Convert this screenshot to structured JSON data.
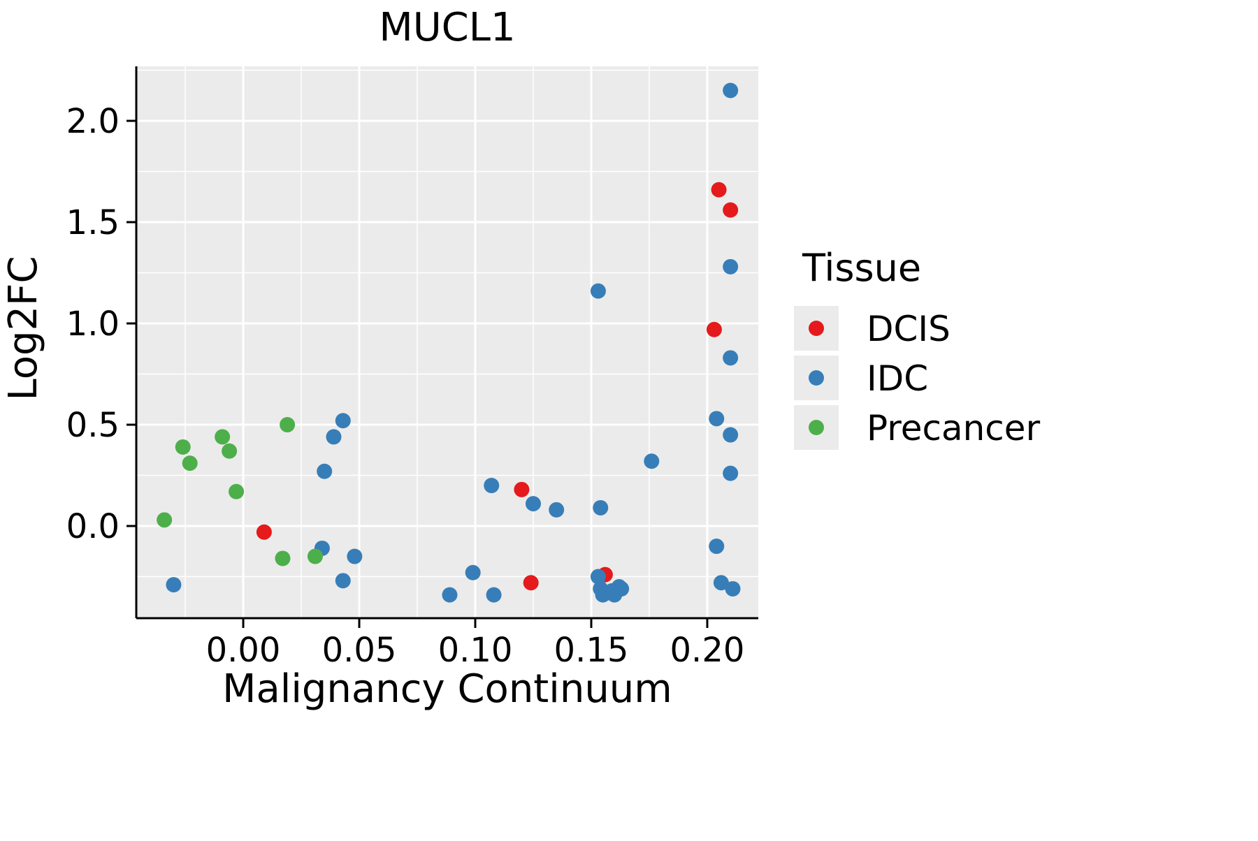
{
  "title": "MUCL1",
  "axes": {
    "x_label": "Malignancy Continuum",
    "y_label": "Log2FC"
  },
  "legend": {
    "title": "Tissue",
    "entries": [
      {
        "label": "DCIS",
        "color": "#E41A1C"
      },
      {
        "label": "IDC",
        "color": "#377EB8"
      },
      {
        "label": "Precancer",
        "color": "#4DAF4A"
      }
    ]
  },
  "colors": {
    "panel_background": "#EBEBEB",
    "grid": "#FFFFFF",
    "axis": "#000000",
    "legend_key_background": "#EBEBEB"
  },
  "chart_data": {
    "type": "scatter",
    "title": "MUCL1",
    "xlabel": "Malignancy Continuum",
    "ylabel": "Log2FC",
    "xlim": [
      -0.0461,
      0.222
    ],
    "ylim": [
      -0.455,
      2.269
    ],
    "x_ticks": [
      0.0,
      0.05,
      0.1,
      0.15,
      0.2
    ],
    "x_tick_labels": [
      "0.00",
      "0.05",
      "0.10",
      "0.15",
      "0.20"
    ],
    "y_ticks": [
      0.0,
      0.5,
      1.0,
      1.5,
      2.0
    ],
    "y_tick_labels": [
      "0.0",
      "0.5",
      "1.0",
      "1.5",
      "2.0"
    ],
    "grid": true,
    "legend_position": "right",
    "point_radius_px": 11,
    "series": [
      {
        "name": "DCIS",
        "color": "#E41A1C",
        "points": [
          [
            0.009,
            -0.03
          ],
          [
            0.12,
            0.18
          ],
          [
            0.124,
            -0.28
          ],
          [
            0.156,
            -0.24
          ],
          [
            0.203,
            0.97
          ],
          [
            0.205,
            1.66
          ],
          [
            0.21,
            1.56
          ]
        ]
      },
      {
        "name": "IDC",
        "color": "#377EB8",
        "points": [
          [
            -0.03,
            -0.29
          ],
          [
            0.034,
            -0.11
          ],
          [
            0.035,
            0.27
          ],
          [
            0.039,
            0.44
          ],
          [
            0.043,
            0.52
          ],
          [
            0.043,
            -0.27
          ],
          [
            0.048,
            -0.15
          ],
          [
            0.089,
            -0.34
          ],
          [
            0.099,
            -0.23
          ],
          [
            0.107,
            0.2
          ],
          [
            0.108,
            -0.34
          ],
          [
            0.125,
            0.11
          ],
          [
            0.135,
            0.08
          ],
          [
            0.153,
            1.16
          ],
          [
            0.154,
            0.09
          ],
          [
            0.153,
            -0.25
          ],
          [
            0.154,
            -0.31
          ],
          [
            0.155,
            -0.34
          ],
          [
            0.157,
            -0.33
          ],
          [
            0.159,
            -0.32
          ],
          [
            0.16,
            -0.34
          ],
          [
            0.162,
            -0.3
          ],
          [
            0.163,
            -0.31
          ],
          [
            0.176,
            0.32
          ],
          [
            0.204,
            0.53
          ],
          [
            0.204,
            -0.1
          ],
          [
            0.206,
            -0.28
          ],
          [
            0.21,
            2.15
          ],
          [
            0.21,
            1.28
          ],
          [
            0.21,
            0.83
          ],
          [
            0.21,
            0.45
          ],
          [
            0.21,
            0.26
          ],
          [
            0.211,
            -0.31
          ]
        ]
      },
      {
        "name": "Precancer",
        "color": "#4DAF4A",
        "points": [
          [
            -0.034,
            0.03
          ],
          [
            -0.026,
            0.39
          ],
          [
            -0.023,
            0.31
          ],
          [
            -0.009,
            0.44
          ],
          [
            -0.006,
            0.37
          ],
          [
            -0.003,
            0.17
          ],
          [
            0.019,
            0.5
          ],
          [
            0.017,
            -0.16
          ],
          [
            0.031,
            -0.15
          ]
        ]
      }
    ]
  }
}
